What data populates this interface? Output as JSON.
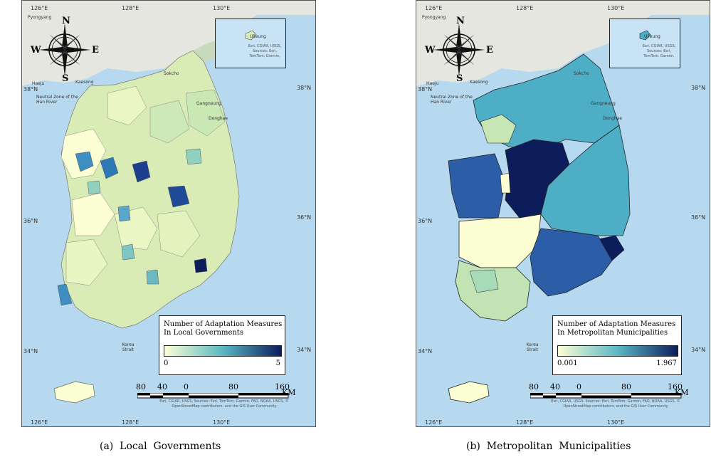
{
  "panels": [
    {
      "id": "a",
      "lon_ticks": [
        "126°E",
        "128°E",
        "130°E"
      ],
      "lat_ticks": [
        "38°N",
        "36°N",
        "34°N"
      ],
      "inset": {
        "island": "Ulleung",
        "source": "Esri, CGIAR, USGS, Sources: Esri, TomTom, Garmin,"
      },
      "compass": {
        "n": "N",
        "s": "S",
        "e": "E",
        "w": "W"
      },
      "places": [
        "Pyongyang",
        "Haeju",
        "Kaesong",
        "Sokcho",
        "Gangneung",
        "Donghae",
        "Neutral Zone of the Han River",
        "Korea Strait"
      ],
      "legend": {
        "title_line1": "Number of Adaptation Measures",
        "title_line2": "In Local Governments",
        "min": "0",
        "max": "5",
        "colors": [
          "#fcfed3",
          "#5ab8c4",
          "#0d1d5c"
        ]
      },
      "scale": {
        "labels": [
          "80",
          "40",
          "0",
          "80",
          "160"
        ],
        "unit": "KM"
      },
      "attribution": "Esri, CGIAR, USGS, Sources: Esri, TomTom, Garmin, FAO, NOAA, USGS, © OpenStreetMap contributors, and the GIS User Community",
      "caption": "(a)  Local  Governments"
    },
    {
      "id": "b",
      "lon_ticks": [
        "126°E",
        "128°E",
        "130°E"
      ],
      "lat_ticks": [
        "38°N",
        "36°N",
        "34°N"
      ],
      "inset": {
        "island": "Ulleung",
        "source": "Esri, CGIAR, USGS, Sources: Esri, TomTom, Garmin,"
      },
      "compass": {
        "n": "N",
        "s": "S",
        "e": "E",
        "w": "W"
      },
      "places": [
        "Pyongyang",
        "Haeju",
        "Kaesong",
        "Sokcho",
        "Gangneung",
        "Donghae",
        "Neutral Zone of the Han River",
        "Korea Strait"
      ],
      "legend": {
        "title_line1": "Number of Adaptation Measures",
        "title_line2": "In Metropolitan Municipalities",
        "min": "0.001",
        "max": "1.967",
        "colors": [
          "#fcfed3",
          "#5ab8c4",
          "#0d1d5c"
        ]
      },
      "scale": {
        "labels": [
          "80",
          "40",
          "0",
          "80",
          "160"
        ],
        "unit": "KM"
      },
      "attribution": "Esri, CGIAR, USGS, Sources: Esri, TomTom, Garmin, FAO, NOAA, USGS, © OpenStreetMap contributors, and the GIS User Community",
      "caption": "(b)  Metropolitan  Municipalities"
    }
  ]
}
